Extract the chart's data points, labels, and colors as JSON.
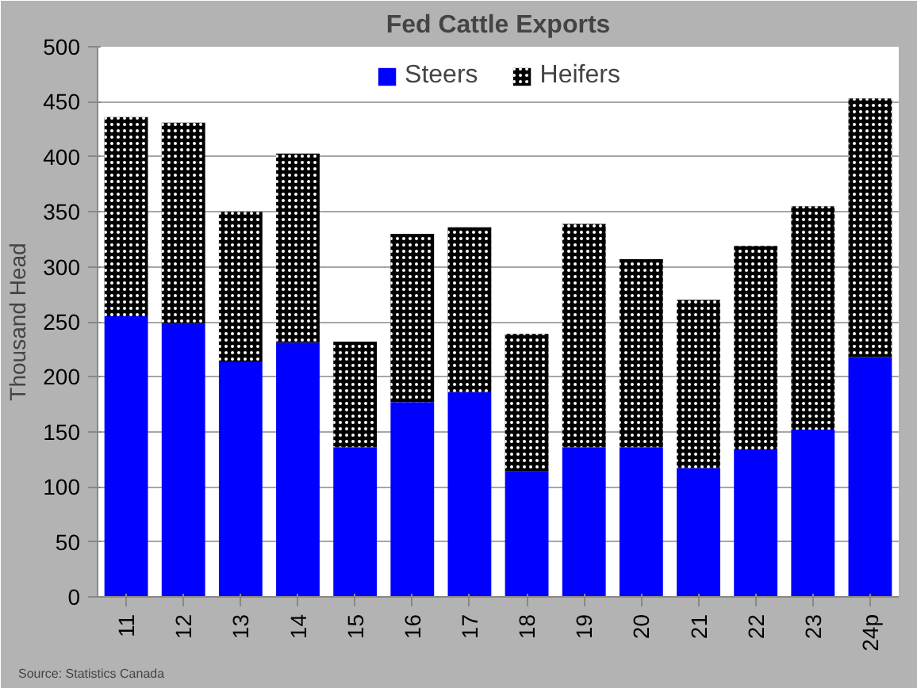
{
  "chart_data": {
    "type": "bar",
    "title": "Fed Cattle Exports",
    "ylabel": "Thousand Head",
    "categories": [
      "11",
      "12",
      "13",
      "14",
      "15",
      "16",
      "17",
      "18",
      "19",
      "20",
      "21",
      "22",
      "23",
      "24p"
    ],
    "series": [
      {
        "name": "Steers",
        "color": "#0000ff",
        "values": [
          255,
          248,
          214,
          231,
          136,
          177,
          186,
          114,
          136,
          136,
          117,
          134,
          152,
          218
        ]
      },
      {
        "name": "Heifers",
        "color": "#000000",
        "values": [
          181,
          183,
          136,
          172,
          96,
          153,
          150,
          125,
          203,
          171,
          153,
          185,
          203,
          235
        ]
      }
    ],
    "stacked": true,
    "ylim": [
      0,
      500
    ],
    "yticks": [
      0,
      50,
      100,
      150,
      200,
      250,
      300,
      350,
      400,
      450,
      500
    ],
    "grid": "y",
    "legend": "top",
    "annotations": [
      "Source: Statistics Canada"
    ]
  }
}
